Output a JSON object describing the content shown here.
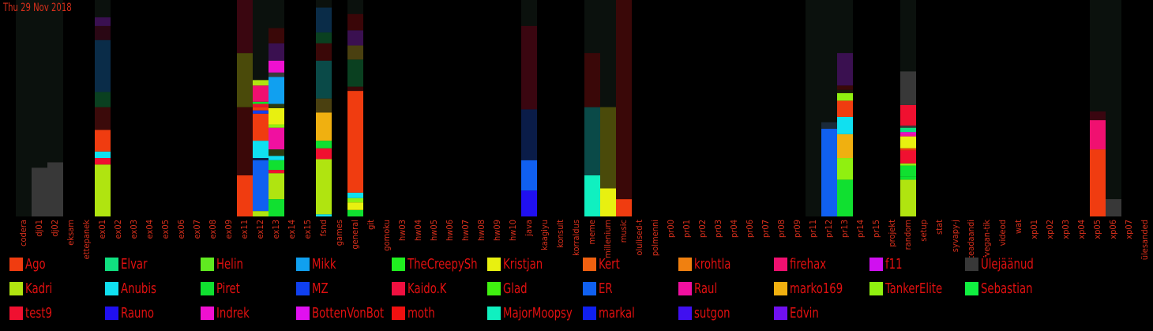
{
  "date_label": "Thu 29 Nov 2018",
  "colors": {
    "track": "#0b110d",
    "label": "#d8301c"
  },
  "chart_data": {
    "type": "bar",
    "stacked": true,
    "ylim": [
      0,
      100
    ],
    "categories": [
      "codera",
      "dj01",
      "dj02",
      "eksam",
      "ettepanek",
      "ex01",
      "ex02",
      "ex03",
      "ex04",
      "ex05",
      "ex06",
      "ex07",
      "ex08",
      "ex09",
      "ex11",
      "ex12",
      "ex13",
      "ex14",
      "ex15",
      "fsnd",
      "games",
      "general",
      "git",
      "gomoku",
      "hw03",
      "hw04",
      "hw05",
      "hw06",
      "hw07",
      "hw08",
      "hw09",
      "hw10",
      "java",
      "kaagiyu",
      "konsult",
      "korraldus",
      "meme",
      "millenium",
      "music",
      "olulised-t",
      "polmenni",
      "pr00",
      "pr01",
      "pr02",
      "pr03",
      "pr04",
      "pr06",
      "pr07",
      "pr08",
      "pr09",
      "pr11",
      "pr12",
      "pr13",
      "pr14",
      "pr15",
      "projekt",
      "random",
      "setup",
      "stat",
      "syvapy-j",
      "teadaandi",
      "vegan-tik",
      "videod",
      "wat",
      "xp01",
      "xp02",
      "xp03",
      "xp04",
      "xp05",
      "xp06",
      "xp07",
      "ülesanded"
    ],
    "track": [
      100,
      100,
      100,
      0,
      0,
      100,
      0,
      0,
      0,
      0,
      0,
      0,
      0,
      0,
      100,
      100,
      100,
      0,
      0,
      100,
      0,
      100,
      0,
      0,
      0,
      0,
      0,
      0,
      0,
      0,
      0,
      0,
      100,
      0,
      0,
      0,
      100,
      100,
      100,
      0,
      0,
      0,
      0,
      0,
      0,
      0,
      0,
      0,
      0,
      0,
      100,
      100,
      100,
      0,
      0,
      0,
      100,
      0,
      0,
      0,
      0,
      0,
      0,
      0,
      0,
      0,
      0,
      0,
      100,
      100,
      0,
      0
    ],
    "stacks": {
      "dj01": [
        [
          "Ülejäänud",
          22.5
        ]
      ],
      "dj02": [
        [
          "Ülejäänud",
          25
        ]
      ],
      "ex01": [
        [
          "Kadri",
          24
        ],
        [
          "test9",
          3
        ],
        [
          "Anubis",
          3
        ],
        [
          "Ago",
          10
        ],
        [
          "#3b0a0a",
          10.5
        ],
        [
          "#0a4020",
          7
        ],
        [
          "#0a2c48",
          24
        ],
        [
          "#2a0714",
          6.5
        ],
        [
          "#3a1050",
          4
        ]
      ],
      "ex11": [
        [
          "Ago",
          19
        ],
        [
          "#3a0808",
          31.5
        ],
        [
          "#4a4a0a",
          25
        ],
        [
          "#3a0610",
          25
        ]
      ],
      "ex12": [
        [
          "Kadri",
          2.5
        ],
        [
          "ER",
          23.5
        ],
        [
          "#0a2048",
          1
        ],
        [
          "Anubis",
          8
        ],
        [
          "Ago",
          12.5
        ],
        [
          "MZ",
          1.5
        ],
        [
          "Ago",
          1.5
        ],
        [
          "test9",
          1.5
        ],
        [
          "Piret",
          1
        ],
        [
          "firehax",
          7.5
        ],
        [
          "Kadri",
          2.5
        ]
      ],
      "ex13": [
        [
          "Piret",
          8
        ],
        [
          "Kadri",
          12
        ],
        [
          "test9",
          1.5
        ],
        [
          "Piret",
          4.5
        ],
        [
          "Anubis",
          2
        ],
        [
          "#2a3a10",
          3
        ],
        [
          "Raul",
          10
        ],
        [
          "TankerElite",
          1.5
        ],
        [
          "Kristjan",
          7.5
        ],
        [
          "#2a3a10",
          2
        ],
        [
          "Mikk",
          12.5
        ],
        [
          "#3a3a3a",
          2
        ],
        [
          "Indrek",
          5.5
        ],
        [
          "#3a1050",
          8
        ],
        [
          "#3a0808",
          7
        ]
      ],
      "fsnd": [
        [
          "Anubis",
          1
        ],
        [
          "Kadri",
          25.5
        ],
        [
          "test9",
          5
        ],
        [
          "Piret",
          3.5
        ],
        [
          "marko169",
          13
        ],
        [
          "#4a4010",
          6.5
        ],
        [
          "#0a4a48",
          17.5
        ],
        [
          "#3a0808",
          8
        ],
        [
          "#0a4020",
          5
        ],
        [
          "#0a2c48",
          11.5
        ]
      ],
      "general": [
        [
          "Piret",
          3
        ],
        [
          "Kristjan",
          3.5
        ],
        [
          "TankerElite",
          2
        ],
        [
          "Anubis",
          2.5
        ],
        [
          "Ago",
          47
        ],
        [
          "#3a0808",
          2
        ],
        [
          "#0a4020",
          12.5
        ],
        [
          "#4a4010",
          6.5
        ],
        [
          "#3a1050",
          7
        ],
        [
          "#3a0608",
          7.5
        ]
      ],
      "java": [
        [
          "Rauno",
          12
        ],
        [
          "ER",
          14
        ],
        [
          "#0a1c48",
          23.5
        ],
        [
          "#3a0610",
          38.5
        ]
      ],
      "meme": [
        [
          "MajorMoopsy",
          19
        ],
        [
          "#0a4a48",
          31.5
        ],
        [
          "#3a0808",
          25
        ]
      ],
      "millenium": [
        [
          "Kristjan",
          13
        ],
        [
          "#4a4a0a",
          37.5
        ]
      ],
      "music": [
        [
          "Ago",
          8
        ],
        [
          "#3a0808",
          92
        ]
      ],
      "pr12": [
        [
          "ER",
          40.5
        ],
        [
          "#1a2a3a",
          3
        ]
      ],
      "pr13": [
        [
          "Piret",
          17
        ],
        [
          "TankerElite",
          10
        ],
        [
          "marko169",
          11
        ],
        [
          "Anubis",
          8
        ],
        [
          "Ago",
          7.5
        ],
        [
          "TankerElite",
          3.5
        ],
        [
          "#1a1a0a",
          1.5
        ],
        [
          "#3a0808",
          2
        ],
        [
          "#3a1050",
          15
        ]
      ],
      "random": [
        [
          "Kadri",
          17
        ],
        [
          "Piret",
          1.5
        ],
        [
          "Piret",
          5
        ],
        [
          "TankerElite",
          1
        ],
        [
          "test9",
          6
        ],
        [
          "Ago",
          1
        ],
        [
          "Kristjan",
          5.5
        ],
        [
          "Raul",
          1
        ],
        [
          "Indrek",
          1
        ],
        [
          "Elvar",
          2
        ],
        [
          "#3a3a3a",
          1
        ],
        [
          "test9",
          9.5
        ],
        [
          "Ülejäänud",
          15.5
        ]
      ],
      "xp05": [
        [
          "Ago",
          31
        ],
        [
          "firehax",
          13.5
        ],
        [
          "#3a0610",
          4
        ]
      ],
      "xp06": [
        [
          "Ülejäänud",
          8
        ]
      ]
    }
  },
  "legend": [
    {
      "name": "Ago",
      "color": "#f03c10"
    },
    {
      "name": "Elvar",
      "color": "#10e080"
    },
    {
      "name": "Helin",
      "color": "#60ea20"
    },
    {
      "name": "Mikk",
      "color": "#10a0f0"
    },
    {
      "name": "TheCreepySh",
      "color": "#20f020"
    },
    {
      "name": "Kristjan",
      "color": "#e8f010"
    },
    {
      "name": "Kert",
      "color": "#f06010"
    },
    {
      "name": "krohtla",
      "color": "#f08010"
    },
    {
      "name": "firehax",
      "color": "#f01070"
    },
    {
      "name": "f11",
      "color": "#d010f0"
    },
    {
      "name": "Ülejäänud",
      "color": "#383838"
    },
    {
      "name": "Kadri",
      "color": "#b0e410"
    },
    {
      "name": "Anubis",
      "color": "#10e0f0"
    },
    {
      "name": "Piret",
      "color": "#10e030"
    },
    {
      "name": "MZ",
      "color": "#1040f0"
    },
    {
      "name": "Kaido.K",
      "color": "#f01040"
    },
    {
      "name": "Glad",
      "color": "#40f010"
    },
    {
      "name": "ER",
      "color": "#1060f0"
    },
    {
      "name": "Raul",
      "color": "#f010a0"
    },
    {
      "name": "marko169",
      "color": "#f0b010"
    },
    {
      "name": "TankerElite",
      "color": "#90f010"
    },
    {
      "name": "Sebastian",
      "color": "#10f040"
    },
    {
      "name": "test9",
      "color": "#f01030"
    },
    {
      "name": "Rauno",
      "color": "#2010f0"
    },
    {
      "name": "Indrek",
      "color": "#f010d0"
    },
    {
      "name": "BottenVonBot",
      "color": "#e010f0"
    },
    {
      "name": "moth",
      "color": "#f01010"
    },
    {
      "name": "MajorMoopsy",
      "color": "#10f0c0"
    },
    {
      "name": "markal",
      "color": "#1020f0"
    },
    {
      "name": "sutgon",
      "color": "#4010f0"
    },
    {
      "name": "Edvin",
      "color": "#7010f0"
    }
  ]
}
